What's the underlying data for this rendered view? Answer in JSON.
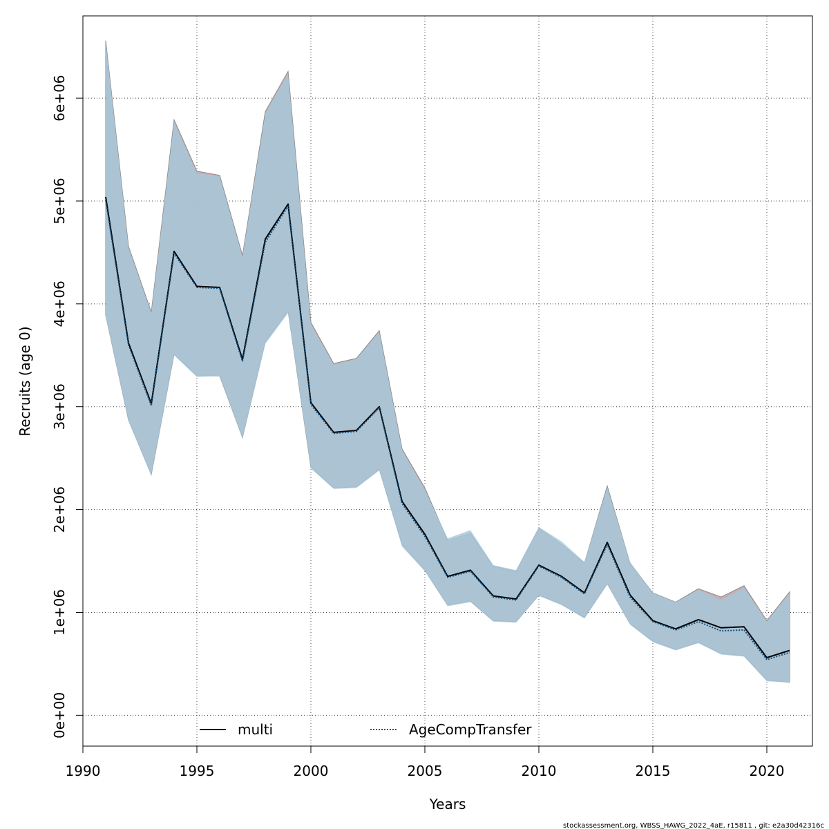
{
  "chart_data": {
    "type": "line",
    "title": "",
    "xlabel": "Years",
    "ylabel": "Recruits (age 0)",
    "xlim": [
      1990,
      2022
    ],
    "ylim": [
      -300000,
      6800000
    ],
    "x_ticks": [
      1990,
      1995,
      2000,
      2005,
      2010,
      2015,
      2020
    ],
    "x_tick_labels": [
      "1990",
      "1995",
      "2000",
      "2005",
      "2010",
      "2015",
      "2020"
    ],
    "y_ticks": [
      0,
      1000000,
      2000000,
      3000000,
      4000000,
      5000000,
      6000000
    ],
    "y_tick_labels": [
      "0e+00",
      "1e+06",
      "2e+06",
      "3e+06",
      "4e+06",
      "5e+06",
      "6e+06"
    ],
    "grid": true,
    "legend_position": "bottom",
    "x": [
      1991,
      1992,
      1993,
      1994,
      1995,
      1996,
      1997,
      1998,
      1999,
      2000,
      2001,
      2002,
      2003,
      2004,
      2005,
      2006,
      2007,
      2008,
      2009,
      2010,
      2011,
      2012,
      2013,
      2014,
      2015,
      2016,
      2017,
      2018,
      2019,
      2020,
      2021
    ],
    "series": [
      {
        "name": "multi",
        "style": "solid",
        "color": "#000000",
        "band_color": "#bda0a6",
        "values": [
          5040000,
          3620000,
          3030000,
          4510000,
          4170000,
          4160000,
          3460000,
          4630000,
          4970000,
          3040000,
          2750000,
          2770000,
          3000000,
          2080000,
          1760000,
          1350000,
          1410000,
          1160000,
          1130000,
          1460000,
          1350000,
          1190000,
          1680000,
          1170000,
          920000,
          840000,
          930000,
          850000,
          860000,
          560000,
          630000
        ],
        "lower": [
          3890000,
          2870000,
          2340000,
          3510000,
          3300000,
          3300000,
          2700000,
          3630000,
          3930000,
          2410000,
          2210000,
          2220000,
          2390000,
          1660000,
          1410000,
          1070000,
          1110000,
          920000,
          910000,
          1170000,
          1080000,
          950000,
          1280000,
          890000,
          720000,
          640000,
          710000,
          600000,
          580000,
          340000,
          320000
        ],
        "upper": [
          6560000,
          4560000,
          3920000,
          5790000,
          5290000,
          5250000,
          4470000,
          5870000,
          6260000,
          3820000,
          3420000,
          3470000,
          3740000,
          2590000,
          2210000,
          1700000,
          1770000,
          1450000,
          1400000,
          1820000,
          1660000,
          1480000,
          2230000,
          1480000,
          1190000,
          1100000,
          1230000,
          1150000,
          1260000,
          920000,
          1200000
        ]
      },
      {
        "name": "AgeCompTransfer",
        "style": "dotted",
        "color": "#0e5080",
        "band_color": "#a5c8db",
        "values": [
          5010000,
          3600000,
          3010000,
          4490000,
          4160000,
          4150000,
          3440000,
          4600000,
          4950000,
          3020000,
          2740000,
          2760000,
          2990000,
          2060000,
          1740000,
          1340000,
          1400000,
          1150000,
          1120000,
          1450000,
          1340000,
          1180000,
          1660000,
          1150000,
          910000,
          830000,
          910000,
          820000,
          830000,
          540000,
          610000
        ],
        "lower": [
          3880000,
          2860000,
          2330000,
          3500000,
          3290000,
          3300000,
          2690000,
          3610000,
          3910000,
          2400000,
          2200000,
          2210000,
          2380000,
          1640000,
          1400000,
          1060000,
          1100000,
          910000,
          900000,
          1160000,
          1070000,
          940000,
          1270000,
          880000,
          710000,
          630000,
          700000,
          590000,
          570000,
          330000,
          320000
        ],
        "upper": [
          6550000,
          4550000,
          3910000,
          5770000,
          5270000,
          5240000,
          4460000,
          5850000,
          6240000,
          3800000,
          3410000,
          3460000,
          3730000,
          2580000,
          2190000,
          1720000,
          1800000,
          1460000,
          1410000,
          1830000,
          1690000,
          1490000,
          2220000,
          1490000,
          1190000,
          1100000,
          1220000,
          1120000,
          1240000,
          910000,
          1190000
        ]
      }
    ]
  },
  "footer": "stockassessment.org, WBSS_HAWG_2022_4aE, r15811 , git: e2a30d42316c"
}
